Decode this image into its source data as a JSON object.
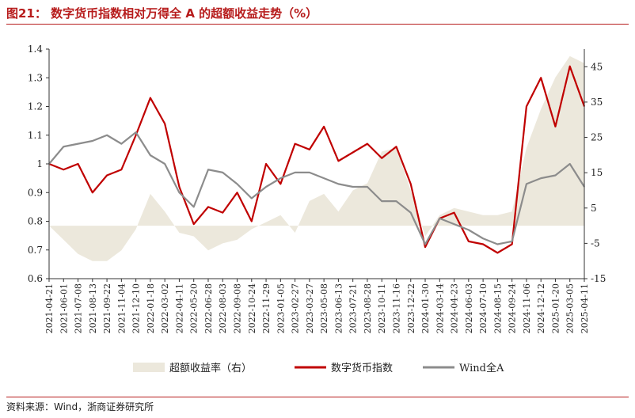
{
  "figure": {
    "title": "图21：  数字货币指数相对万得全 A 的超额收益走势（%）",
    "source": "资料来源：Wind，浙商证券研究所"
  },
  "colors": {
    "excess": "#ece8dc",
    "index": "#c00000",
    "wind": "#8c8c8c",
    "axis": "#333333"
  },
  "chart_data": {
    "type": "line",
    "title": "",
    "x": [
      "2021-04-21",
      "2021-06-01",
      "2021-07-08",
      "2021-08-13",
      "2021-09-22",
      "2021-11-04",
      "2021-12-10",
      "2022-01-18",
      "2022-03-02",
      "2022-04-11",
      "2022-05-20",
      "2022-06-28",
      "2022-08-03",
      "2022-09-08",
      "2022-10-24",
      "2022-11-29",
      "2023-01-05",
      "2023-02-27",
      "2023-03-27",
      "2023-05-08",
      "2023-06-13",
      "2023-07-21",
      "2023-08-28",
      "2023-10-11",
      "2023-11-16",
      "2023-12-22",
      "2024-01-30",
      "2024-03-14",
      "2024-04-23",
      "2024-06-03",
      "2024-07-10",
      "2024-08-15",
      "2024-09-24",
      "2024-11-06",
      "2024-12-12",
      "2025-01-20",
      "2025-03-05",
      "2025-04-11"
    ],
    "x_ticks": [
      "2021-04-21",
      "2021-06-01",
      "2021-07-08",
      "2021-08-13",
      "2021-09-22",
      "2021-11-04",
      "2021-12-10",
      "2022-01-18",
      "2022-03-02",
      "2022-04-11",
      "2022-05-20",
      "2022-06-28",
      "2022-08-03",
      "2022-09-08",
      "2022-10-24",
      "2022-11-29",
      "2023-01-05",
      "2023-02-27",
      "2023-03-27",
      "2023-05-08",
      "2023-06-13",
      "2023-07-21",
      "2023-08-28",
      "2023-10-11",
      "2023-11-16",
      "2023-12-22",
      "2024-01-30",
      "2024-03-14",
      "2024-04-23",
      "2024-06-03",
      "2024-07-10",
      "2024-08-15",
      "2024-09-24",
      "2024-11-06",
      "2024-12-12",
      "2025-01-20",
      "2025-03-05",
      "2025-04-11"
    ],
    "ylim_left": [
      0.6,
      1.4
    ],
    "yticks_left": [
      "0.6",
      "0.7",
      "0.8",
      "0.9",
      "1",
      "1.1",
      "1.2",
      "1.3",
      "1.4"
    ],
    "ylim_right": [
      -15,
      50
    ],
    "yticks_right": [
      "-15",
      "-5",
      "5",
      "15",
      "25",
      "35",
      "45"
    ],
    "legend_position": "bottom",
    "series": [
      {
        "name": "超额收益率（右）",
        "axis": "right",
        "chart": "area",
        "values": [
          0,
          -4,
          -8,
          -10,
          -10,
          -7,
          -1,
          9,
          4,
          -2,
          -3,
          -7,
          -5,
          -4,
          -1,
          1,
          3,
          -2,
          7,
          9,
          4,
          10,
          12,
          21,
          22,
          10,
          -3,
          3,
          5,
          4,
          3,
          3,
          4,
          22,
          33,
          42,
          48,
          46
        ]
      },
      {
        "name": "数字货币指数",
        "axis": "left",
        "chart": "line",
        "values": [
          1.0,
          0.98,
          1.0,
          0.9,
          0.96,
          0.98,
          1.1,
          1.23,
          1.14,
          0.92,
          0.79,
          0.85,
          0.83,
          0.9,
          0.8,
          1.0,
          0.93,
          1.07,
          1.05,
          1.13,
          1.01,
          1.04,
          1.07,
          1.02,
          1.06,
          0.93,
          0.71,
          0.81,
          0.83,
          0.73,
          0.72,
          0.69,
          0.72,
          1.2,
          1.3,
          1.13,
          1.34,
          1.2
        ]
      },
      {
        "name": "Wind全A",
        "axis": "left",
        "chart": "line",
        "values": [
          1.0,
          1.06,
          1.07,
          1.08,
          1.1,
          1.07,
          1.11,
          1.03,
          1.0,
          0.9,
          0.85,
          0.98,
          0.97,
          0.93,
          0.88,
          0.92,
          0.95,
          0.97,
          0.97,
          0.95,
          0.93,
          0.92,
          0.92,
          0.87,
          0.87,
          0.83,
          0.72,
          0.81,
          0.79,
          0.77,
          0.74,
          0.72,
          0.73,
          0.93,
          0.95,
          0.96,
          1.0,
          0.92
        ]
      }
    ]
  }
}
